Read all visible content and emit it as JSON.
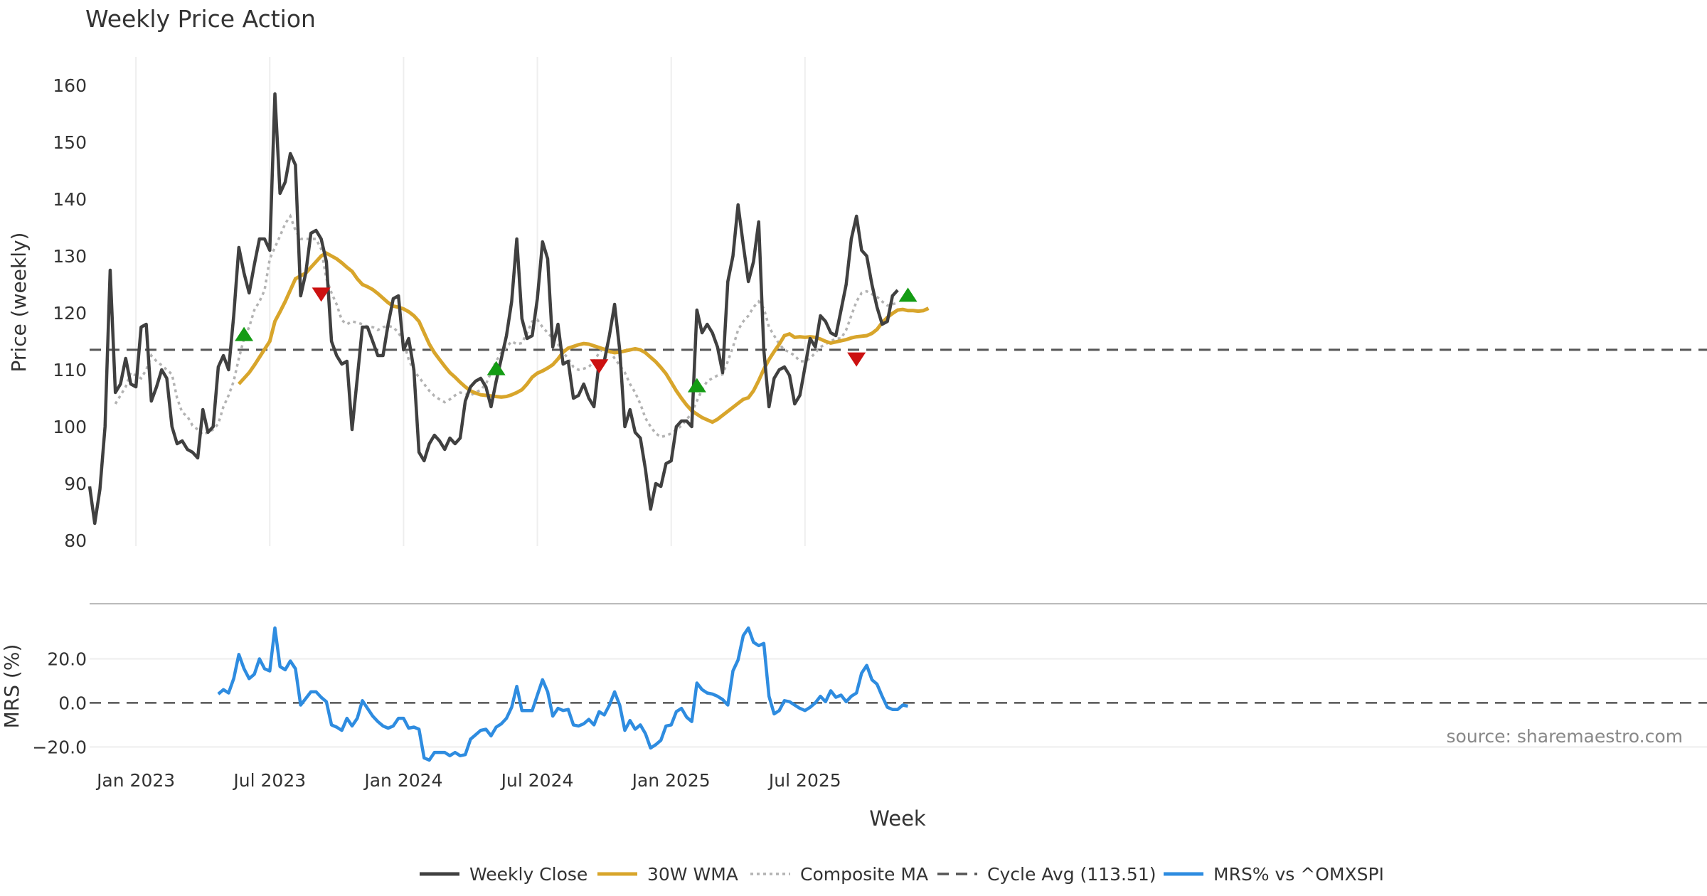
{
  "chart_data": [
    {
      "type": "line",
      "title": "Weekly Price Action",
      "ylabel": "Price (weekly)",
      "xlabel": "",
      "ylim": [
        80,
        162
      ],
      "yticks": [
        80,
        90,
        100,
        110,
        120,
        130,
        140,
        150,
        160
      ],
      "x_start": "2022-10-31",
      "x_step_days": 7,
      "series": [
        {
          "name": "Weekly Close",
          "color": "#404040",
          "start_index": 0,
          "values": [
            89.5,
            83,
            89,
            100,
            127.5,
            106,
            107.5,
            112,
            107.5,
            107,
            117.5,
            118,
            104.5,
            107,
            110,
            108.5,
            100,
            97,
            97.5,
            96,
            95.5,
            94.5,
            103,
            99,
            100,
            110.5,
            112.5,
            110,
            119.5,
            131.5,
            127,
            123.5,
            128.5,
            133,
            133,
            131,
            158.5,
            141,
            143,
            148,
            146,
            123,
            127,
            134,
            134.5,
            133,
            129,
            115,
            112.5,
            111,
            111.5,
            99.5,
            108.5,
            117.5,
            117.5,
            115,
            112.5,
            112.5,
            118,
            122.5,
            123,
            113.5,
            115.5,
            110,
            95.5,
            94,
            97,
            98.5,
            97.5,
            96,
            98,
            97,
            98,
            104.5,
            107,
            108,
            108.5,
            107,
            103.5,
            108,
            112,
            116,
            122,
            133,
            119,
            115.5,
            116,
            122.5,
            132.5,
            129.5,
            114,
            118,
            111,
            111.5,
            105,
            105.5,
            107.5,
            105,
            103.5,
            111.5,
            111.5,
            116,
            121.5,
            113.5,
            100,
            103,
            99,
            98,
            92.5,
            85.5,
            90,
            89.5,
            93.5,
            94,
            100,
            101,
            101,
            100,
            120.5,
            116.5,
            118,
            116.5,
            114,
            109.5,
            125.5,
            130,
            139,
            132,
            125.5,
            129,
            136,
            113.5,
            103.5,
            108.5,
            110,
            110.5,
            109,
            104,
            105.5,
            110.5,
            115.5,
            114,
            119.5,
            118.5,
            116.5,
            116,
            120.5,
            125,
            133,
            137,
            131,
            130,
            125,
            121,
            118,
            118.5,
            123,
            124
          ]
        },
        {
          "name": "30W WMA",
          "color": "#D8A52B",
          "start_index": 29,
          "values": [
            107.5,
            108.5,
            109.5,
            110.8,
            112.2,
            113.6,
            115,
            118.5,
            120.2,
            122,
            124,
            126,
            126.5,
            127,
            128,
            129,
            130,
            130.5,
            130,
            129.5,
            128.8,
            128,
            127.3,
            126,
            125,
            124.6,
            124.1,
            123.4,
            122.6,
            121.8,
            121.2,
            121,
            120.7,
            120.2,
            119.5,
            118.5,
            116.5,
            114.5,
            113,
            111.8,
            110.6,
            109.5,
            108.7,
            107.8,
            107,
            106.3,
            105.9,
            105.6,
            105.5,
            105.4,
            105.3,
            105.2,
            105.3,
            105.6,
            106,
            106.5,
            107.5,
            108.7,
            109.4,
            109.8,
            110.3,
            110.9,
            111.9,
            113.1,
            113.8,
            114.1,
            114.4,
            114.6,
            114.5,
            114.2,
            113.9,
            113.6,
            113.2,
            113,
            113.1,
            113.3,
            113.5,
            113.7,
            113.5,
            113,
            112.2,
            111.4,
            110.4,
            109.3,
            107.8,
            106.3,
            105,
            103.8,
            102.8,
            102.2,
            101.6,
            101.2,
            100.8,
            101.3,
            102,
            102.7,
            103.4,
            104.1,
            104.8,
            105.1,
            106.3,
            108.1,
            110.1,
            111.8,
            113.2,
            114.5,
            116,
            116.3,
            115.7,
            115.8,
            115.7,
            115.8,
            115.7,
            115.4,
            115,
            114.7,
            114.9,
            115.1,
            115.3,
            115.6,
            115.8,
            115.9,
            116,
            116.4,
            117.1,
            118.3,
            119.2,
            119.9,
            120.5,
            120.6,
            120.4,
            120.4,
            120.3,
            120.4,
            120.8
          ]
        },
        {
          "name": "Composite MA",
          "color": "#b3b3b3",
          "start_index": 5,
          "values": [
            104,
            105.5,
            107,
            109.5,
            109,
            108.5,
            110,
            112.5,
            111.5,
            110.8,
            110,
            109.2,
            105,
            102.5,
            101.8,
            100.2,
            99.5,
            98.6,
            99,
            99.5,
            100.5,
            103.5,
            105.5,
            108,
            112,
            115.5,
            117.5,
            120.5,
            122,
            124,
            129.5,
            131.5,
            133.5,
            135.7,
            137,
            134.5,
            133,
            133,
            133,
            133,
            131.2,
            126,
            123.5,
            121.5,
            118.7,
            118,
            118.5,
            118.3,
            118,
            117.6,
            117.5,
            117,
            117.5,
            117.7,
            117.5,
            116.5,
            115,
            111.8,
            109.8,
            108.7,
            107.5,
            106.3,
            105.4,
            104.8,
            104.3,
            104.8,
            105.5,
            106,
            105.8,
            105.5,
            106,
            106.5,
            107.5,
            109.5,
            111.5,
            113,
            114,
            115,
            114.5,
            114.7,
            116.5,
            118.5,
            118.8,
            117.5,
            116.5,
            115.5,
            114.5,
            113,
            112,
            110.5,
            110,
            110.2,
            110.5,
            111.5,
            113,
            114,
            113.5,
            112,
            110.8,
            109.5,
            107.5,
            106,
            104,
            101.5,
            100,
            98.8,
            98.2,
            98.4,
            98.8,
            99.4,
            100.2,
            101.2,
            102.5,
            104.5,
            106.5,
            108,
            108.5,
            109,
            109.2,
            111.5,
            114,
            117,
            118.5,
            119.5,
            121,
            122,
            120.8,
            117.5,
            116,
            114.5,
            113.5,
            113.1,
            112.5,
            111.5,
            111.5,
            112,
            113,
            114,
            114.5,
            115,
            115.5,
            115.5,
            117,
            119.5,
            122,
            123.5,
            123.8,
            123.3,
            122.8,
            122,
            121.3,
            121.5,
            121.8
          ]
        }
      ],
      "reference_lines": [
        {
          "name": "Cycle Avg (113.51)",
          "value": 113.51,
          "color": "#555555"
        }
      ],
      "signals": [
        {
          "type": "buy",
          "index": 30,
          "value": 116.3,
          "color": "#149c14"
        },
        {
          "type": "sell",
          "index": 45,
          "value": 123.2,
          "color": "#cc1111"
        },
        {
          "type": "buy",
          "index": 79,
          "value": 110.3,
          "color": "#149c14"
        },
        {
          "type": "sell",
          "index": 99,
          "value": 110.6,
          "color": "#cc1111"
        },
        {
          "type": "buy",
          "index": 118,
          "value": 107.3,
          "color": "#149c14"
        },
        {
          "type": "sell",
          "index": 149,
          "value": 111.8,
          "color": "#cc1111"
        },
        {
          "type": "buy",
          "index": 159,
          "value": 123.2,
          "color": "#149c14"
        }
      ]
    },
    {
      "type": "line",
      "title": "",
      "ylabel": "MRS (%)",
      "xlabel": "Week",
      "ylim": [
        -27,
        35
      ],
      "yticks": [
        -20,
        0,
        20
      ],
      "ytick_labels": [
        "−20.0",
        "0.0",
        "20.0"
      ],
      "xtick_labels": [
        "Jan 2023",
        "Jul 2023",
        "Jan 2024",
        "Jul 2024",
        "Jan 2025",
        "Jul 2025"
      ],
      "xtick_indices": [
        9,
        35,
        61,
        87,
        113,
        139
      ],
      "reference_lines": [
        {
          "name": "zero",
          "value": 0,
          "color": "#555555"
        }
      ],
      "series": [
        {
          "name": "MRS% vs ^OMXSPI",
          "color": "#2E8CE0",
          "start_index": 25,
          "values": [
            4,
            6,
            4.5,
            11,
            22,
            15.5,
            11,
            13,
            20,
            15.5,
            14.5,
            34,
            16.5,
            15,
            19,
            15.5,
            -1,
            2,
            5,
            5,
            2.5,
            0.5,
            -10,
            -11,
            -12.5,
            -7,
            -10.5,
            -7,
            1,
            -2.5,
            -6,
            -8.5,
            -10.5,
            -11.5,
            -10.5,
            -7,
            -7,
            -11.5,
            -11,
            -12,
            -25,
            -26,
            -22.5,
            -22.5,
            -22.5,
            -24,
            -22.5,
            -24,
            -23.5,
            -16.5,
            -14.5,
            -12.5,
            -12,
            -15,
            -11,
            -9.5,
            -7,
            -2,
            7.5,
            -3.5,
            -3.5,
            -3.5,
            3.5,
            10.5,
            5,
            -6,
            -2.5,
            -3.5,
            -3,
            -10,
            -10.5,
            -9.5,
            -7.5,
            -10,
            -4,
            -5.5,
            -1,
            5,
            -1,
            -12.5,
            -8,
            -12,
            -10,
            -14,
            -20.5,
            -19,
            -17,
            -10.5,
            -10,
            -4,
            -2.5,
            -6.5,
            -8.5,
            9,
            6,
            4.5,
            4,
            3,
            1.5,
            -1,
            14.5,
            19.5,
            30.5,
            34,
            27.5,
            26,
            27,
            3,
            -5,
            -3.5,
            1,
            0.5,
            -1,
            -2.5,
            -3.5,
            -2,
            0,
            3,
            0.5,
            5.5,
            2.5,
            3.5,
            0.5,
            3,
            4.5,
            13.5,
            17,
            10.5,
            8.5,
            3,
            -2,
            -3,
            -3,
            -1,
            -1.5
          ]
        }
      ]
    }
  ],
  "source_note": "source: sharemaestro.com",
  "legend": [
    {
      "label": "Weekly Close",
      "style": "solid",
      "color": "#404040"
    },
    {
      "label": "30W WMA",
      "style": "solid",
      "color": "#D8A52B"
    },
    {
      "label": "Composite MA",
      "style": "dotted",
      "color": "#b3b3b3"
    },
    {
      "label": "Cycle Avg (113.51)",
      "style": "dashed",
      "color": "#555555"
    },
    {
      "label": "MRS% vs ^OMXSPI",
      "style": "solid",
      "color": "#2E8CE0"
    }
  ]
}
